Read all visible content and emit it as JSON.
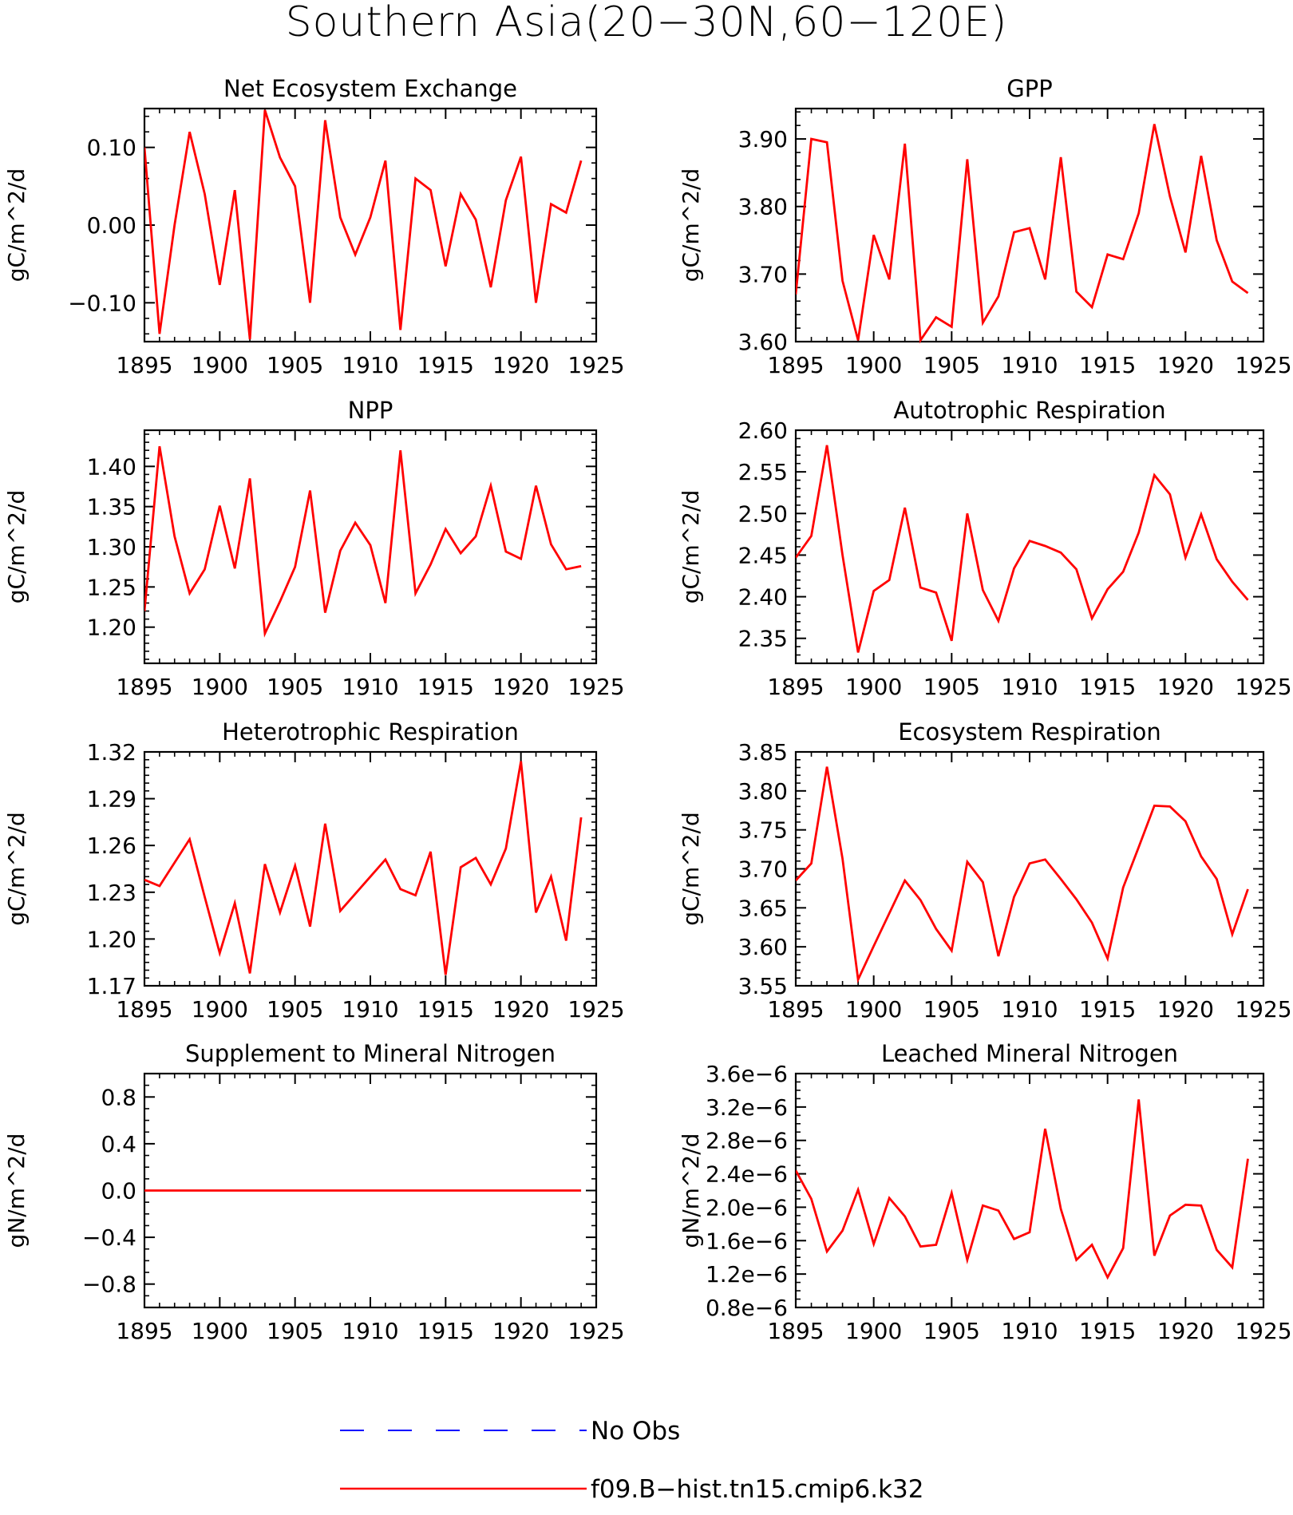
{
  "figure": {
    "title": "Southern Asia(20−30N,60−120E)"
  },
  "style": {
    "series_color": "#ff0000",
    "obs_color": "#0000ff",
    "axis_color": "#000000"
  },
  "legend": {
    "items": [
      {
        "label": "No Obs",
        "color": "#0000ff",
        "style": "dashed"
      },
      {
        "label": "f09.B−hist.tn15.cmip6.k32",
        "color": "#ff0000",
        "style": "solid"
      }
    ]
  },
  "chart_data": [
    {
      "type": "line",
      "title": "Net Ecosystem Exchange",
      "ylabel": "gC/m^2/d",
      "xlim": [
        1895,
        1925
      ],
      "ylim": [
        -0.15,
        0.15
      ],
      "xticks": [
        1895,
        1900,
        1905,
        1910,
        1915,
        1920,
        1925
      ],
      "yticks": [
        -0.1,
        0.0,
        0.1
      ],
      "ytick_labels": [
        "−0.10",
        "0.00",
        "0.10"
      ],
      "ytick_minor": 0.02,
      "x": [
        1895,
        1896,
        1897,
        1898,
        1899,
        1900,
        1901,
        1902,
        1903,
        1904,
        1905,
        1906,
        1907,
        1908,
        1909,
        1910,
        1911,
        1912,
        1913,
        1914,
        1915,
        1916,
        1917,
        1918,
        1919,
        1920,
        1921,
        1922,
        1923,
        1924
      ],
      "series": [
        {
          "name": "f09.B−hist.tn15.cmip6.k32",
          "values": [
            0.1,
            -0.14,
            0.0,
            0.12,
            0.04,
            -0.077,
            0.045,
            -0.147,
            0.148,
            0.087,
            0.05,
            -0.1,
            0.135,
            0.01,
            -0.038,
            0.01,
            0.083,
            -0.135,
            0.06,
            0.045,
            -0.053,
            0.04,
            0.007,
            -0.08,
            0.032,
            0.088,
            -0.1,
            0.027,
            0.016,
            0.083
          ]
        }
      ]
    },
    {
      "type": "line",
      "title": "GPP",
      "ylabel": "gC/m^2/d",
      "xlim": [
        1895,
        1925
      ],
      "ylim": [
        3.6,
        3.945
      ],
      "xticks": [
        1895,
        1900,
        1905,
        1910,
        1915,
        1920,
        1925
      ],
      "yticks": [
        3.6,
        3.7,
        3.8,
        3.9
      ],
      "ytick_labels": [
        "3.60",
        "3.70",
        "3.80",
        "3.90"
      ],
      "ytick_minor": 0.02,
      "x": [
        1895,
        1896,
        1897,
        1898,
        1899,
        1900,
        1901,
        1902,
        1903,
        1904,
        1905,
        1906,
        1907,
        1908,
        1909,
        1910,
        1911,
        1912,
        1913,
        1914,
        1915,
        1916,
        1917,
        1918,
        1919,
        1920,
        1921,
        1922,
        1923,
        1924
      ],
      "series": [
        {
          "name": "f09.B−hist.tn15.cmip6.k32",
          "values": [
            3.67,
            3.9,
            3.895,
            3.69,
            3.602,
            3.758,
            3.692,
            3.893,
            3.602,
            3.636,
            3.622,
            3.87,
            3.628,
            3.667,
            3.762,
            3.768,
            3.692,
            3.873,
            3.674,
            3.651,
            3.729,
            3.722,
            3.79,
            3.922,
            3.815,
            3.732,
            3.875,
            3.75,
            3.689,
            3.672
          ]
        }
      ]
    },
    {
      "type": "line",
      "title": "NPP",
      "ylabel": "gC/m^2/d",
      "xlim": [
        1895,
        1925
      ],
      "ylim": [
        1.155,
        1.445
      ],
      "xticks": [
        1895,
        1900,
        1905,
        1910,
        1915,
        1920,
        1925
      ],
      "yticks": [
        1.2,
        1.25,
        1.3,
        1.35,
        1.4
      ],
      "ytick_labels": [
        "1.20",
        "1.25",
        "1.30",
        "1.35",
        "1.40"
      ],
      "ytick_minor": 0.01,
      "x": [
        1895,
        1896,
        1897,
        1898,
        1899,
        1900,
        1901,
        1902,
        1903,
        1904,
        1905,
        1906,
        1907,
        1908,
        1909,
        1910,
        1911,
        1912,
        1913,
        1914,
        1915,
        1916,
        1917,
        1918,
        1919,
        1920,
        1921,
        1922,
        1923,
        1924
      ],
      "series": [
        {
          "name": "f09.B−hist.tn15.cmip6.k32",
          "values": [
            1.22,
            1.425,
            1.313,
            1.242,
            1.272,
            1.351,
            1.273,
            1.385,
            1.192,
            1.232,
            1.275,
            1.37,
            1.218,
            1.295,
            1.33,
            1.302,
            1.23,
            1.42,
            1.242,
            1.278,
            1.322,
            1.292,
            1.313,
            1.376,
            1.294,
            1.285,
            1.376,
            1.303,
            1.272,
            1.276
          ]
        }
      ]
    },
    {
      "type": "line",
      "title": "Autotrophic Respiration",
      "ylabel": "gC/m^2/d",
      "xlim": [
        1895,
        1925
      ],
      "ylim": [
        2.32,
        2.6
      ],
      "xticks": [
        1895,
        1900,
        1905,
        1910,
        1915,
        1920,
        1925
      ],
      "yticks": [
        2.35,
        2.4,
        2.45,
        2.5,
        2.55,
        2.6
      ],
      "ytick_labels": [
        "2.35",
        "2.40",
        "2.45",
        "2.50",
        "2.55",
        "2.60"
      ],
      "ytick_minor": 0.01,
      "x": [
        1895,
        1896,
        1897,
        1898,
        1899,
        1900,
        1901,
        1902,
        1903,
        1904,
        1905,
        1906,
        1907,
        1908,
        1909,
        1910,
        1911,
        1912,
        1913,
        1914,
        1915,
        1916,
        1917,
        1918,
        1919,
        1920,
        1921,
        1922,
        1923,
        1924
      ],
      "series": [
        {
          "name": "f09.B−hist.tn15.cmip6.k32",
          "values": [
            2.447,
            2.473,
            2.582,
            2.45,
            2.333,
            2.407,
            2.42,
            2.507,
            2.411,
            2.405,
            2.347,
            2.5,
            2.408,
            2.371,
            2.434,
            2.467,
            2.461,
            2.453,
            2.433,
            2.374,
            2.409,
            2.43,
            2.477,
            2.546,
            2.523,
            2.447,
            2.499,
            2.445,
            2.418,
            2.396
          ]
        }
      ]
    },
    {
      "type": "line",
      "title": "Heterotrophic Respiration",
      "ylabel": "gC/m^2/d",
      "xlim": [
        1895,
        1925
      ],
      "ylim": [
        1.17,
        1.32
      ],
      "xticks": [
        1895,
        1900,
        1905,
        1910,
        1915,
        1920,
        1925
      ],
      "yticks": [
        1.17,
        1.2,
        1.23,
        1.26,
        1.29,
        1.32
      ],
      "ytick_labels": [
        "1.17",
        "1.20",
        "1.23",
        "1.26",
        "1.29",
        "1.32"
      ],
      "ytick_minor": 0.005,
      "x": [
        1895,
        1896,
        1897,
        1898,
        1899,
        1900,
        1901,
        1902,
        1903,
        1904,
        1905,
        1906,
        1907,
        1908,
        1909,
        1910,
        1911,
        1912,
        1913,
        1914,
        1915,
        1916,
        1917,
        1918,
        1919,
        1920,
        1921,
        1922,
        1923,
        1924
      ],
      "series": [
        {
          "name": "f09.B−hist.tn15.cmip6.k32",
          "values": [
            1.238,
            1.234,
            1.249,
            1.264,
            1.227,
            1.191,
            1.223,
            1.178,
            1.248,
            1.217,
            1.247,
            1.208,
            1.274,
            1.218,
            1.229,
            1.24,
            1.251,
            1.232,
            1.228,
            1.256,
            1.177,
            1.246,
            1.252,
            1.235,
            1.258,
            1.314,
            1.217,
            1.24,
            1.199,
            1.278
          ]
        }
      ]
    },
    {
      "type": "line",
      "title": "Ecosystem Respiration",
      "ylabel": "gC/m^2/d",
      "xlim": [
        1895,
        1925
      ],
      "ylim": [
        3.55,
        3.85
      ],
      "xticks": [
        1895,
        1900,
        1905,
        1910,
        1915,
        1920,
        1925
      ],
      "yticks": [
        3.55,
        3.6,
        3.65,
        3.7,
        3.75,
        3.8,
        3.85
      ],
      "ytick_labels": [
        "3.55",
        "3.60",
        "3.65",
        "3.70",
        "3.75",
        "3.80",
        "3.85"
      ],
      "ytick_minor": 0.01,
      "x": [
        1895,
        1896,
        1897,
        1898,
        1899,
        1900,
        1901,
        1902,
        1903,
        1904,
        1905,
        1906,
        1907,
        1908,
        1909,
        1910,
        1911,
        1912,
        1913,
        1914,
        1915,
        1916,
        1917,
        1918,
        1919,
        1920,
        1921,
        1922,
        1923,
        1924
      ],
      "series": [
        {
          "name": "f09.B−hist.tn15.cmip6.k32",
          "values": [
            3.685,
            3.707,
            3.831,
            3.713,
            3.558,
            3.601,
            3.643,
            3.685,
            3.66,
            3.623,
            3.595,
            3.709,
            3.683,
            3.588,
            3.664,
            3.707,
            3.712,
            3.687,
            3.661,
            3.631,
            3.585,
            3.676,
            3.728,
            3.781,
            3.78,
            3.761,
            3.716,
            3.687,
            3.616,
            3.674
          ]
        }
      ]
    },
    {
      "type": "line",
      "title": "Supplement to Mineral Nitrogen",
      "ylabel": "gN/m^2/d",
      "xlim": [
        1895,
        1925
      ],
      "ylim": [
        -1.0,
        1.0
      ],
      "xticks": [
        1895,
        1900,
        1905,
        1910,
        1915,
        1920,
        1925
      ],
      "yticks": [
        -0.8,
        -0.4,
        0.0,
        0.4,
        0.8
      ],
      "ytick_labels": [
        "−0.8",
        "−0.4",
        "0.0",
        "0.4",
        "0.8"
      ],
      "ytick_minor": 0.1,
      "x": [
        1895,
        1896,
        1897,
        1898,
        1899,
        1900,
        1901,
        1902,
        1903,
        1904,
        1905,
        1906,
        1907,
        1908,
        1909,
        1910,
        1911,
        1912,
        1913,
        1914,
        1915,
        1916,
        1917,
        1918,
        1919,
        1920,
        1921,
        1922,
        1923,
        1924
      ],
      "series": [
        {
          "name": "f09.B−hist.tn15.cmip6.k32",
          "values": [
            0,
            0,
            0,
            0,
            0,
            0,
            0,
            0,
            0,
            0,
            0,
            0,
            0,
            0,
            0,
            0,
            0,
            0,
            0,
            0,
            0,
            0,
            0,
            0,
            0,
            0,
            0,
            0,
            0,
            0
          ]
        }
      ]
    },
    {
      "type": "line",
      "title": "Leached Mineral Nitrogen",
      "ylabel": "gN/m^2/d",
      "xlim": [
        1895,
        1925
      ],
      "ylim": [
        8e-07,
        3.6e-06
      ],
      "xticks": [
        1895,
        1900,
        1905,
        1910,
        1915,
        1920,
        1925
      ],
      "yticks": [
        8e-07,
        1.2e-06,
        1.6e-06,
        2e-06,
        2.4e-06,
        2.8e-06,
        3.2e-06,
        3.6e-06
      ],
      "ytick_labels": [
        "0.8e−6",
        "1.2e−6",
        "1.6e−6",
        "2.0e−6",
        "2.4e−6",
        "2.8e−6",
        "3.2e−6",
        "3.6e−6"
      ],
      "ytick_minor": 1e-07,
      "x": [
        1895,
        1896,
        1897,
        1898,
        1899,
        1900,
        1901,
        1902,
        1903,
        1904,
        1905,
        1906,
        1907,
        1908,
        1909,
        1910,
        1911,
        1912,
        1913,
        1914,
        1915,
        1916,
        1917,
        1918,
        1919,
        1920,
        1921,
        1922,
        1923,
        1924
      ],
      "series": [
        {
          "name": "f09.B−hist.tn15.cmip6.k32",
          "values": [
            2.44e-06,
            2.1e-06,
            1.47e-06,
            1.72e-06,
            2.21e-06,
            1.56e-06,
            2.11e-06,
            1.89e-06,
            1.53e-06,
            1.55e-06,
            2.17e-06,
            1.37e-06,
            2.02e-06,
            1.96e-06,
            1.62e-06,
            1.7e-06,
            2.94e-06,
            1.98e-06,
            1.37e-06,
            1.55e-06,
            1.16e-06,
            1.51e-06,
            3.29e-06,
            1.42e-06,
            1.9e-06,
            2.03e-06,
            2.02e-06,
            1.49e-06,
            1.28e-06,
            2.58e-06
          ]
        }
      ]
    }
  ]
}
